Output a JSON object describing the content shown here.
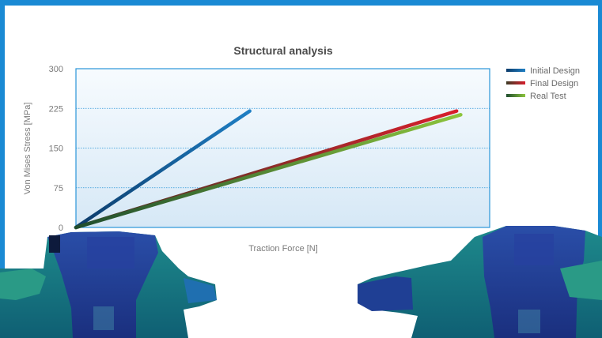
{
  "colors": {
    "frame_accent": "#1a8ad4",
    "plot_bg_top": "#f7fbfe",
    "plot_bg_bottom": "#d6e8f6",
    "plot_border": "#2a95d8",
    "grid": "#2a95d8"
  },
  "chart_data": {
    "type": "line",
    "title": "Structural analysis",
    "xlabel": "Traction Force [N]",
    "ylabel": "Von Mises Stress [MPa]",
    "ylim": [
      0,
      300
    ],
    "yticks": [
      "0",
      "75",
      "150",
      "225",
      "300"
    ],
    "xlim": [
      0,
      100
    ],
    "grid": "horizontal dotted",
    "legend_position": "top-right",
    "series": [
      {
        "name": "Initial Design",
        "color": "#1f7fc4",
        "color_dark": "#0c3b6a",
        "x": [
          0,
          42
        ],
        "y": [
          0,
          220
        ]
      },
      {
        "name": "Final Design",
        "color": "#d81e2c",
        "color_dark": "#3c3b25",
        "x": [
          0,
          92
        ],
        "y": [
          0,
          220
        ]
      },
      {
        "name": "Real Test",
        "color": "#8cc43c",
        "color_dark": "#1f4d2e",
        "x": [
          0,
          93
        ],
        "y": [
          0,
          213
        ]
      }
    ]
  },
  "illustrations": {
    "left_part": "fea-stress-map",
    "right_part": "fea-stress-map"
  }
}
